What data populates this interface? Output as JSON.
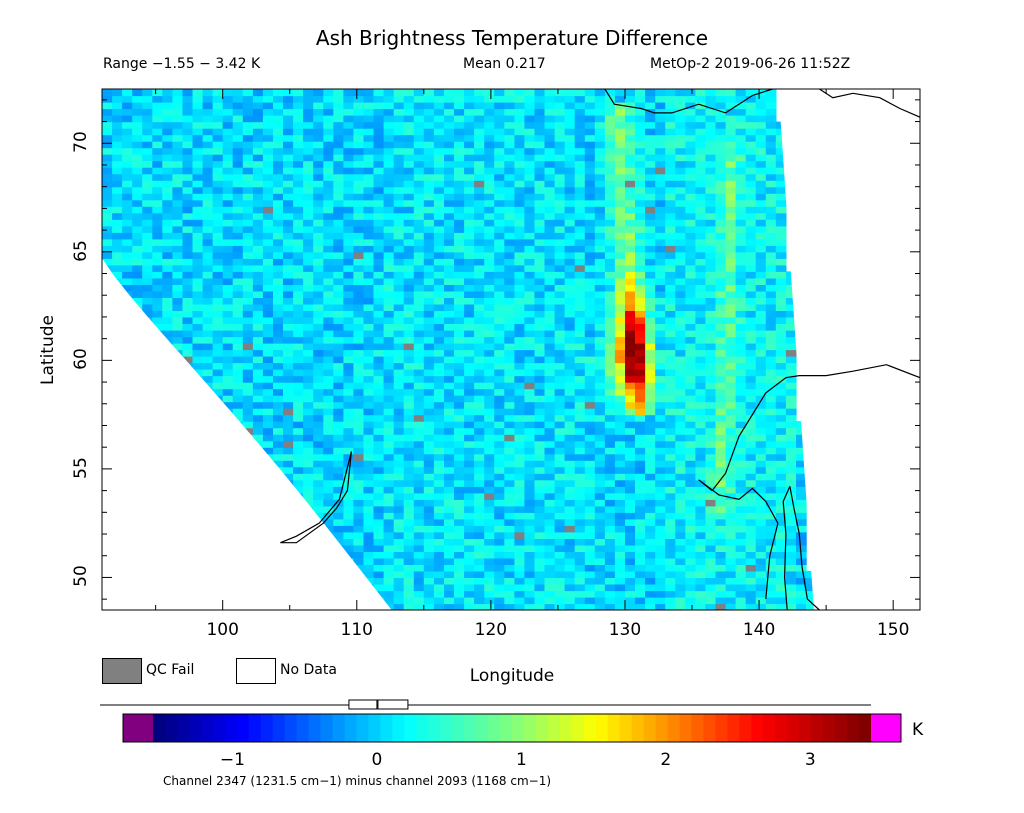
{
  "chart_data": {
    "type": "heatmap",
    "title": "Ash Brightness Temperature Difference",
    "subtitle": {
      "range": "Range −1.55 − 3.42 K",
      "mean": "Mean 0.217",
      "satellite_time": "MetOp-2 2019-06-26 11:52Z"
    },
    "xlabel": "Longitude",
    "ylabel": "Latitude",
    "xlim": [
      91,
      152
    ],
    "ylim": [
      48.5,
      72.5
    ],
    "xticks": [
      100,
      110,
      120,
      130,
      140,
      150
    ],
    "yticks": [
      50,
      55,
      60,
      65,
      70
    ],
    "value_range": [
      -1.55,
      3.42
    ],
    "mean": 0.217,
    "unit": "K",
    "colorbar": {
      "ticks": [
        -1,
        0,
        1,
        2,
        3
      ],
      "ticklabels": [
        "−1",
        "0",
        "1",
        "2",
        "3"
      ],
      "min": -1.55,
      "max": 3.42,
      "unit": "K",
      "caption": "Channel 2347 (1231.5 cm−1) minus channel 2093 (1168 cm−1)"
    },
    "legend": [
      {
        "label": "QC Fail",
        "color": "#808080"
      },
      {
        "label": "No Data",
        "color": "#ffffff"
      }
    ],
    "features": {
      "ash_plume": {
        "lon_range": [
          128.5,
          132
        ],
        "lat_range": [
          57.5,
          72
        ],
        "peak_value": 3.4,
        "peak_lat": 60.5,
        "peak_lon": 131
      },
      "secondary_band": {
        "lon": 137.5,
        "lat_range": [
          53,
          70
        ],
        "value": 1.3
      },
      "swath_east_edge_lon": [
        142.5,
        144
      ]
    }
  },
  "colors": {
    "qc_fail": "#808080",
    "no_data": "#ffffff",
    "under_range": "#800080",
    "over_range": "#ff00ff"
  }
}
